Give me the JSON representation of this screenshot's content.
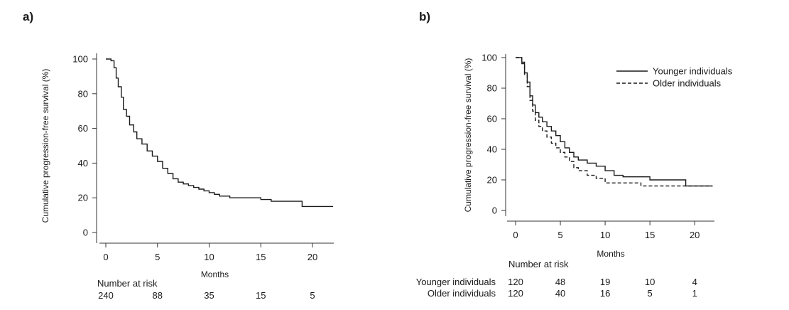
{
  "panel_labels": {
    "a": "a)",
    "b": "b)"
  },
  "chart_data": [
    {
      "type": "line",
      "panel": "a)",
      "xlabel": "Months",
      "ylabel": "Cumulative progression-free survival (%)",
      "xlim": [
        0,
        22
      ],
      "ylim": [
        0,
        100
      ],
      "x_ticks": [
        0,
        5,
        10,
        15,
        20
      ],
      "y_ticks": [
        0,
        20,
        40,
        60,
        80,
        100
      ],
      "grid": false,
      "series": [
        {
          "style": "solid",
          "x": [
            0,
            0.5,
            0.8,
            1.0,
            1.2,
            1.5,
            1.7,
            2.0,
            2.3,
            2.7,
            3.0,
            3.5,
            4.0,
            4.5,
            5.0,
            5.5,
            6.0,
            6.5,
            7.0,
            7.5,
            8.0,
            8.5,
            9.0,
            9.5,
            10.0,
            10.5,
            11.0,
            12.0,
            13.0,
            14.0,
            15.0,
            16.0,
            17.0,
            18.0,
            19.0,
            20.0,
            21.0,
            22.0
          ],
          "y": [
            100,
            99,
            95,
            89,
            84,
            78,
            71,
            67,
            62,
            58,
            54,
            51,
            47,
            44,
            41,
            37,
            34,
            31,
            29,
            28,
            27,
            26,
            25,
            24,
            23,
            22,
            21,
            20,
            20,
            20,
            19,
            18,
            18,
            18,
            15,
            15,
            15,
            15
          ]
        }
      ],
      "risk_table": {
        "title": "Number at risk",
        "timepoints": [
          0,
          5,
          10,
          15,
          20
        ],
        "rows": [
          {
            "label": "",
            "values": [
              "240",
              "88",
              "35",
              "15",
              "5"
            ]
          }
        ]
      }
    },
    {
      "type": "line",
      "panel": "b)",
      "xlabel": "Months",
      "ylabel": "Cumulative progression-free survival (%)",
      "xlim": [
        0,
        22
      ],
      "ylim": [
        0,
        100
      ],
      "x_ticks": [
        0,
        5,
        10,
        15,
        20
      ],
      "y_ticks": [
        0,
        20,
        40,
        60,
        80,
        100
      ],
      "grid": false,
      "legend_position": "top-right",
      "series": [
        {
          "name": "Younger individuals",
          "style": "solid",
          "x": [
            0,
            0.7,
            1.0,
            1.3,
            1.6,
            1.9,
            2.2,
            2.6,
            3.0,
            3.5,
            4.0,
            4.5,
            5.0,
            5.5,
            6.0,
            6.5,
            7.0,
            8.0,
            9.0,
            10.0,
            11.0,
            12.0,
            13.0,
            14.0,
            15.0,
            16.0,
            17.0,
            18.0,
            19.0,
            20.0,
            21.0,
            22.0
          ],
          "y": [
            100,
            97,
            90,
            84,
            75,
            69,
            64,
            61,
            58,
            55,
            52,
            49,
            45,
            41,
            38,
            35,
            33,
            31,
            29,
            26,
            23,
            22,
            22,
            22,
            20,
            20,
            20,
            20,
            16,
            16,
            16,
            16
          ]
        },
        {
          "name": "Older individuals",
          "style": "dashed",
          "x": [
            0,
            0.7,
            1.0,
            1.3,
            1.6,
            1.9,
            2.2,
            2.6,
            3.0,
            3.5,
            4.0,
            4.5,
            5.0,
            5.5,
            6.0,
            6.5,
            7.0,
            8.0,
            9.0,
            10.0,
            11.0,
            12.0,
            13.0,
            14.0,
            15.0,
            16.0,
            17.0,
            18.0,
            19.0,
            20.0,
            21.0,
            22.0
          ],
          "y": [
            100,
            96,
            89,
            81,
            72,
            65,
            59,
            55,
            52,
            48,
            44,
            41,
            38,
            35,
            32,
            28,
            26,
            23,
            21,
            18,
            18,
            18,
            18,
            16,
            16,
            16,
            16,
            16,
            16,
            16,
            16,
            16
          ]
        }
      ],
      "risk_table": {
        "title": "Number at risk",
        "timepoints": [
          0,
          5,
          10,
          15,
          20
        ],
        "rows": [
          {
            "label": "Younger individuals",
            "values": [
              "120",
              "48",
              "19",
              "10",
              "4"
            ]
          },
          {
            "label": "Older individuals",
            "values": [
              "120",
              "40",
              "16",
              "5",
              "1"
            ]
          }
        ]
      }
    }
  ]
}
